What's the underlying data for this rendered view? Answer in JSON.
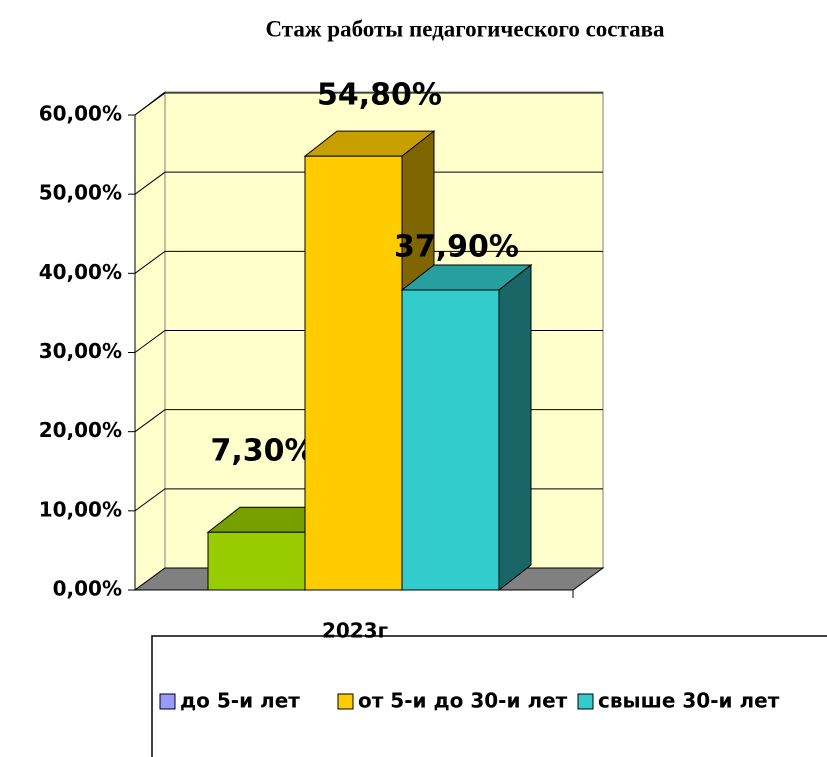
{
  "chart_data": {
    "type": "bar3d",
    "title": "Стаж работы педагогического состава",
    "categories": [
      "2023г"
    ],
    "series": [
      {
        "name": "до 5-и лет",
        "color": "#99cc00",
        "legend_color": "#9999ff",
        "values": [
          7.3
        ],
        "value_labels": [
          "7,30%"
        ]
      },
      {
        "name": "от 5-и до 30-и лет",
        "color": "#ffcc00",
        "legend_color": "#ffcc00",
        "values": [
          54.8
        ],
        "value_labels": [
          "54,80%"
        ]
      },
      {
        "name": "свыше 30-и лет",
        "color": "#33cccc",
        "legend_color": "#33cccc",
        "values": [
          37.9
        ],
        "value_labels": [
          "37,90%"
        ]
      }
    ],
    "ylim": [
      0,
      60
    ],
    "yticks": [
      {
        "value": 0,
        "label": "0,00%"
      },
      {
        "value": 10,
        "label": "10,00%"
      },
      {
        "value": 20,
        "label": "20,00%"
      },
      {
        "value": 30,
        "label": "30,00%"
      },
      {
        "value": 40,
        "label": "40,00%"
      },
      {
        "value": 50,
        "label": "50,00%"
      },
      {
        "value": 60,
        "label": "60,00%"
      }
    ],
    "grid": true,
    "legend": "bottom"
  }
}
